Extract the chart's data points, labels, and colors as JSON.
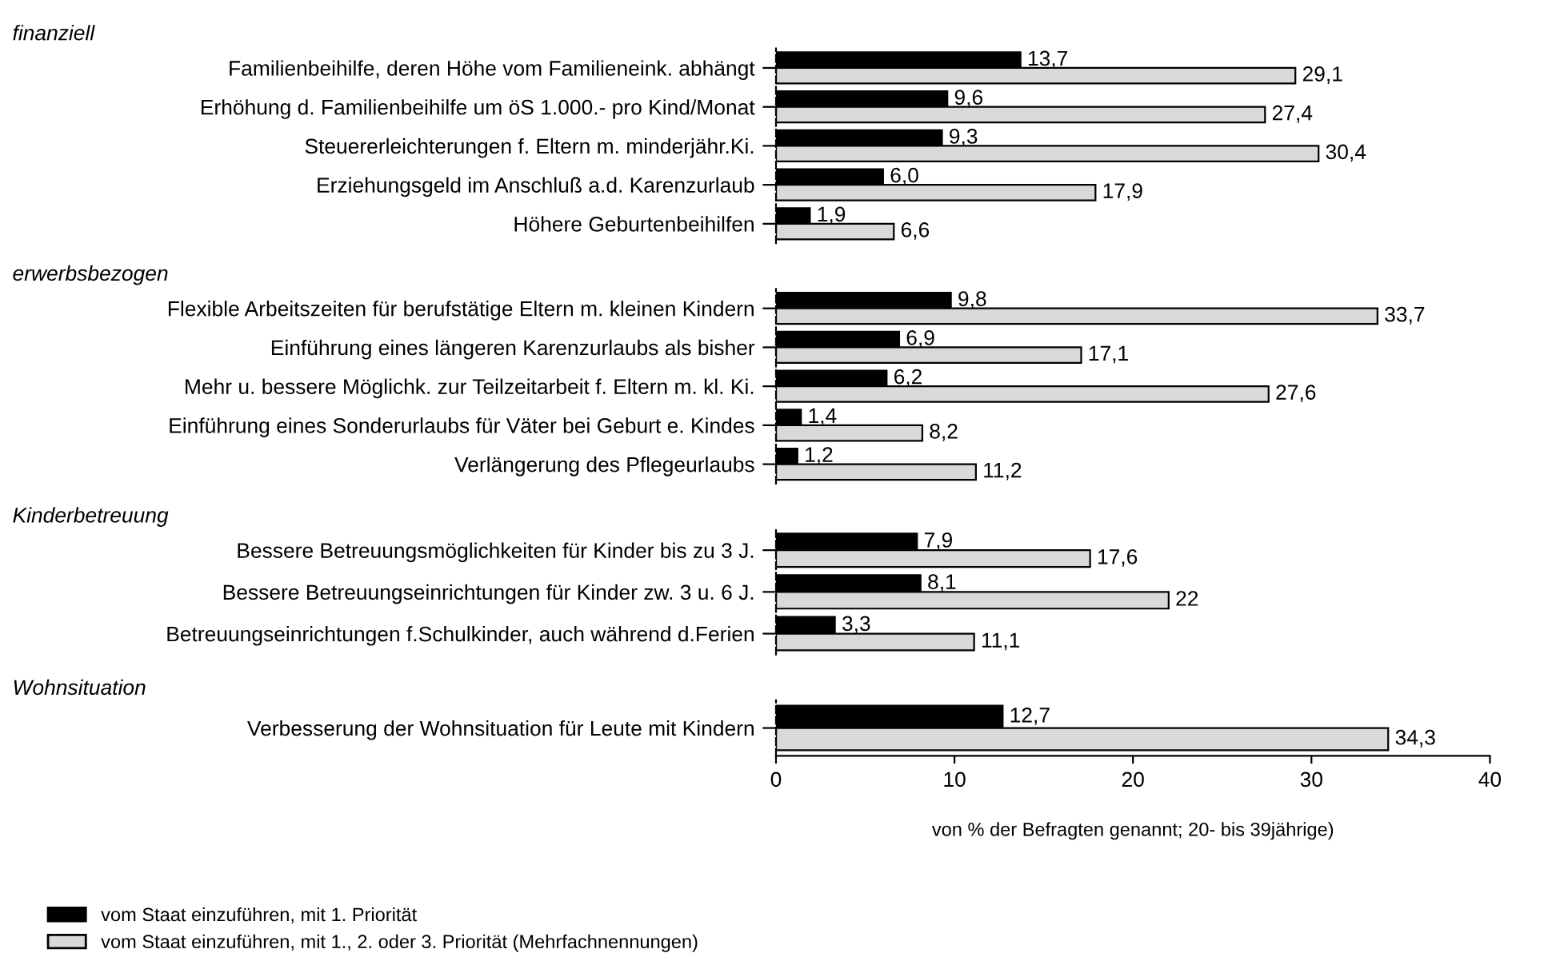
{
  "chart_data": [
    {
      "type": "bar",
      "orientation": "horizontal",
      "title": "finanziell",
      "tick_labels": "y",
      "xlim": [
        0,
        40
      ],
      "xticks": [
        0,
        10,
        20,
        30,
        40
      ],
      "grid": false,
      "categories": [
        "Familienbeihilfe, deren Höhe vom Familieneink. abhängt",
        "Erhöhung d. Familienbeihilfe um öS 1.000.- pro Kind/Monat",
        "Steuererleichterungen f. Eltern m. minderjähr.Ki.",
        "Erziehungsgeld im Anschluß a.d. Karenzurlaub",
        "Höhere Geburtenbeihilfen"
      ],
      "series": [
        {
          "color": "#000000",
          "values": [
            13.7,
            9.6,
            9.3,
            6.0,
            1.9
          ],
          "value_labels": [
            "13,7",
            "9,6",
            "9,3",
            "6,0",
            "1,9"
          ]
        },
        {
          "color": "#d9d9d9",
          "values": [
            29.1,
            27.4,
            30.4,
            17.9,
            6.6
          ],
          "value_labels": [
            "29,1",
            "27,4",
            "30,4",
            "17,9",
            "6,6"
          ]
        }
      ]
    },
    {
      "type": "bar",
      "orientation": "horizontal",
      "title": "erwerbsbezogen",
      "tick_labels": "y",
      "xlim": [
        0,
        40
      ],
      "xticks": [
        0,
        10,
        20,
        30,
        40
      ],
      "grid": false,
      "categories": [
        "Flexible Arbeitszeiten für berufstätige Eltern m. kleinen Kindern",
        "Einführung eines längeren Karenzurlaubs als bisher",
        "Mehr u. bessere Möglichk. zur Teilzeitarbeit f. Eltern m. kl. Ki.",
        "Einführung eines Sonderurlaubs für Väter bei Geburt e. Kindes",
        "Verlängerung des Pflegeurlaubs"
      ],
      "series": [
        {
          "color": "#000000",
          "values": [
            9.8,
            6.9,
            6.2,
            1.4,
            1.2
          ],
          "value_labels": [
            "9,8",
            "6,9",
            "6,2",
            "1,4",
            "1,2"
          ]
        },
        {
          "color": "#d9d9d9",
          "values": [
            33.7,
            17.1,
            27.6,
            8.2,
            11.2
          ],
          "value_labels": [
            "33,7",
            "17,1",
            "27,6",
            "8,2",
            "11,2"
          ]
        }
      ]
    },
    {
      "type": "bar",
      "orientation": "horizontal",
      "title": "Kinderbetreuung",
      "tick_labels": "y",
      "xlim": [
        0,
        40
      ],
      "xticks": [
        0,
        10,
        20,
        30,
        40
      ],
      "grid": false,
      "categories": [
        "Bessere Betreuungsmöglichkeiten für Kinder bis zu 3 J.",
        "Bessere Betreuungseinrichtungen für Kinder zw. 3 u. 6 J.",
        "Betreuungseinrichtungen f.Schulkinder, auch während d.Ferien"
      ],
      "series": [
        {
          "color": "#000000",
          "values": [
            7.9,
            8.1,
            3.3
          ],
          "value_labels": [
            "7,9",
            "8,1",
            "3,3"
          ]
        },
        {
          "color": "#d9d9d9",
          "values": [
            17.6,
            22,
            11.1
          ],
          "value_labels": [
            "17,6",
            "22",
            "11,1"
          ]
        }
      ]
    },
    {
      "type": "bar",
      "orientation": "horizontal",
      "title": "Wohnsituation",
      "xlim": [
        0,
        40
      ],
      "xticks": [
        0,
        10,
        20,
        30,
        40
      ],
      "grid": false,
      "legend": "bottom left",
      "xlabel": "von % der Befragten genannt; 20- bis 39jährige)",
      "categories": [
        "Verbesserung der Wohnsituation für Leute mit Kindern"
      ],
      "series": [
        {
          "name": "vom Staat einzuführen, mit 1. Priorität",
          "color": "#000000",
          "values": [
            12.7
          ],
          "value_labels": [
            "12,7"
          ]
        },
        {
          "name": "vom Staat einzuführen, mit 1., 2. oder 3. Priorität (Mehrfachnennungen)",
          "color": "#d9d9d9",
          "values": [
            34.3
          ],
          "value_labels": [
            "34,3"
          ]
        }
      ]
    }
  ]
}
